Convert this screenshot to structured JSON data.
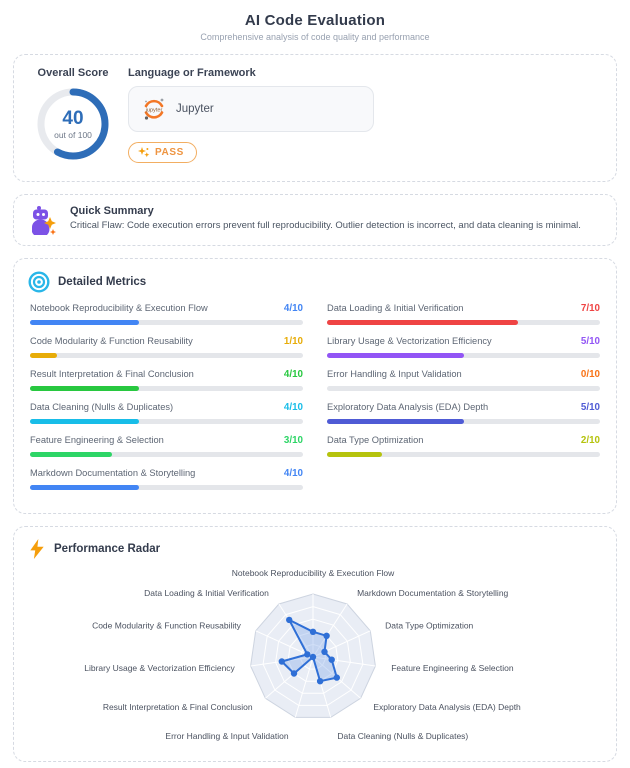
{
  "header": {
    "title": "AI Code Evaluation",
    "subtitle": "Comprehensive analysis of code quality and performance"
  },
  "score_card": {
    "overall_label": "Overall Score",
    "score": "40",
    "out_of": "out of 100",
    "framework_label": "Language or Framework",
    "framework_name": "Jupyter",
    "framework_logo_text": "jupyter",
    "status": "PASS",
    "accent_color": "#2e6db8",
    "status_color": "#ee9440"
  },
  "summary": {
    "title": "Quick Summary",
    "text": "Critical Flaw: Code execution errors prevent full reproducibility. Outlier detection is incorrect, and data cleaning is minimal."
  },
  "metrics": {
    "title": "Detailed Metrics",
    "max": 10,
    "left_column": [
      {
        "label": "Notebook Reproducibility & Execution Flow",
        "score": 4,
        "color": "#4285f4"
      },
      {
        "label": "Code Modularity & Function Reusability",
        "score": 1,
        "color": "#e7ac08"
      },
      {
        "label": "Result Interpretation & Final Conclusion",
        "score": 4,
        "color": "#28c840"
      },
      {
        "label": "Data Cleaning (Nulls & Duplicates)",
        "score": 4,
        "color": "#18bde8"
      },
      {
        "label": "Feature Engineering & Selection",
        "score": 3,
        "color": "#2dd566"
      },
      {
        "label": "Markdown Documentation & Storytelling",
        "score": 4,
        "color": "#4285f4"
      }
    ],
    "right_column": [
      {
        "label": "Data Loading & Initial Verification",
        "score": 7,
        "color": "#ef4444"
      },
      {
        "label": "Library Usage & Vectorization Efficiency",
        "score": 5,
        "color": "#9255f5"
      },
      {
        "label": "Error Handling & Input Validation",
        "score": 0,
        "color": "#f97316"
      },
      {
        "label": "Exploratory Data Analysis (EDA) Depth",
        "score": 5,
        "color": "#4f5bd5"
      },
      {
        "label": "Data Type Optimization",
        "score": 2,
        "color": "#b5c30d"
      }
    ]
  },
  "radar_section": {
    "title": "Performance Radar"
  },
  "chart_data": {
    "type": "radar",
    "title": "Performance Radar",
    "categories": [
      "Notebook Reproducibility & Execution Flow",
      "Markdown Documentation & Storytelling",
      "Data Type Optimization",
      "Feature Engineering & Selection",
      "Exploratory Data Analysis (EDA) Depth",
      "Data Cleaning (Nulls & Duplicates)",
      "Error Handling & Input Validation",
      "Result Interpretation & Final Conclusion",
      "Library Usage & Vectorization Efficiency",
      "Code Modularity & Function Reusability",
      "Data Loading & Initial Verification"
    ],
    "values": [
      4,
      4,
      2,
      3,
      5,
      4,
      0,
      4,
      5,
      1,
      7
    ],
    "rmax": 10,
    "levels": 5,
    "grid_fill": "#e9edf5",
    "grid_line": "#ffffff",
    "grid_border": "#cdd4e0",
    "series_color": "#2f6fd6",
    "series_fill": "#7aa3e8",
    "label_color": "#4b5260"
  }
}
